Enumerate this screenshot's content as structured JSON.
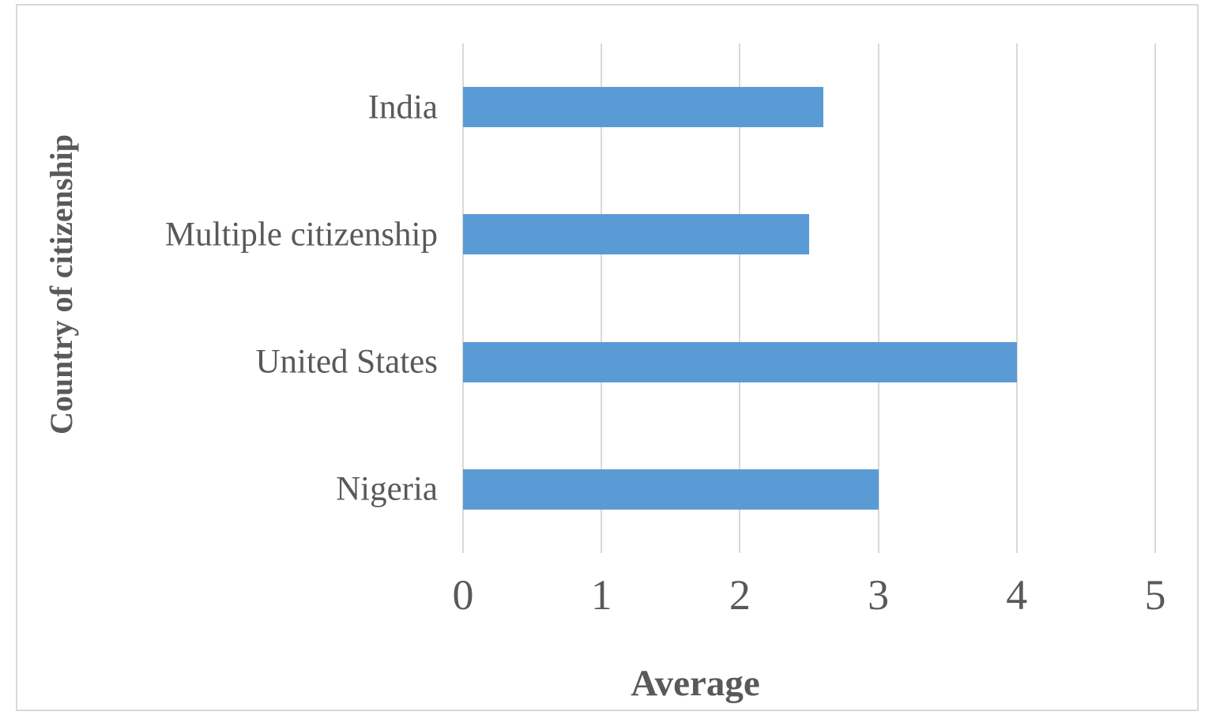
{
  "chart_data": {
    "type": "bar",
    "orientation": "horizontal",
    "title": "",
    "xlabel": "Average",
    "ylabel": "Country of citizenship",
    "categories": [
      "India",
      "Multiple citizenship",
      "United States",
      "Nigeria"
    ],
    "values": [
      2.6,
      2.5,
      4,
      3
    ],
    "xlim": [
      0,
      5
    ],
    "xticks": [
      0,
      1,
      2,
      3,
      4,
      5
    ],
    "grid": "vertical-gridlines-on",
    "legend": "none",
    "colors": {
      "bar": "#5b9bd5",
      "text": "#595959",
      "gridline": "#d9d9d9",
      "frame_border": "#d9d9d9",
      "background": "#ffffff"
    }
  }
}
